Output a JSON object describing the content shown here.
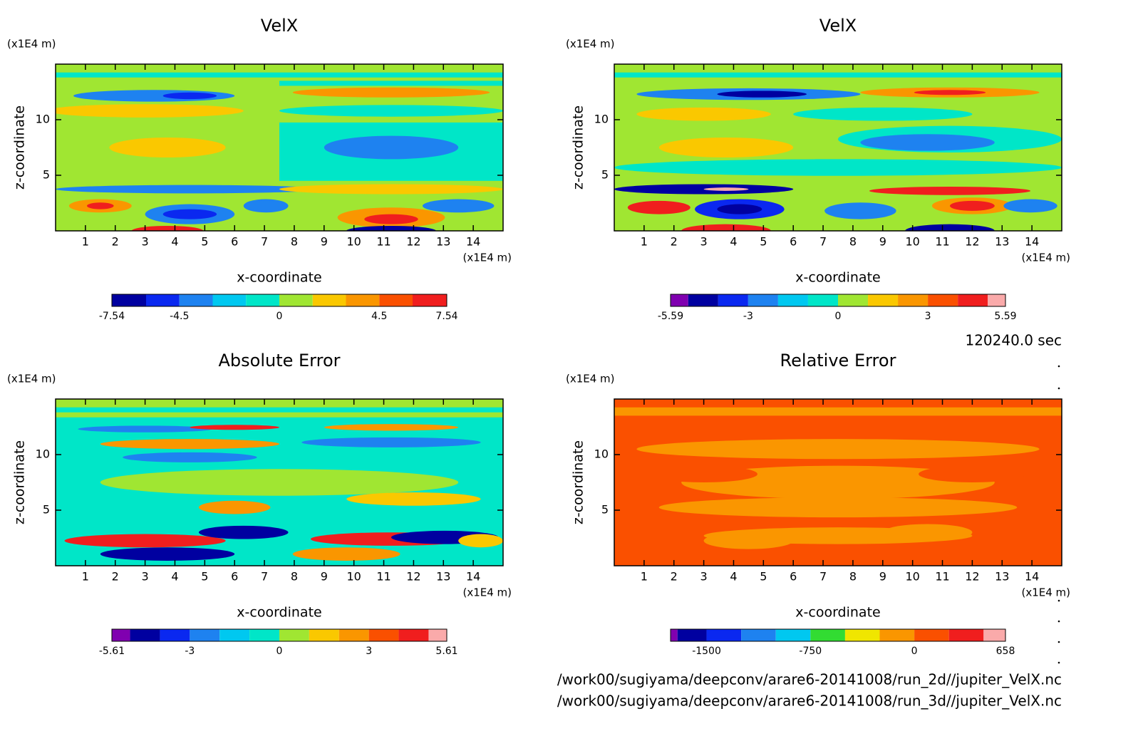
{
  "chart_data": [
    {
      "type": "contour",
      "title": "VelX",
      "xlabel": "x-coordinate",
      "ylabel": "z-coordinate",
      "x_unit": "(x1E4 m)",
      "y_unit": "(x1E4 m)",
      "xlim": [
        0,
        15
      ],
      "ylim": [
        0,
        15
      ],
      "xticks": [
        1,
        2,
        3,
        4,
        5,
        6,
        7,
        8,
        9,
        10,
        11,
        12,
        13,
        14
      ],
      "yticks": [
        5,
        10
      ],
      "colorbar_levels": [
        -7.54,
        -6,
        -4.5,
        -3,
        -1.5,
        0,
        1.5,
        3,
        4.5,
        6,
        7.54
      ],
      "colorbar_colors": [
        "#0000a0",
        "#0a28f0",
        "#1e82f0",
        "#00c8f0",
        "#00e6c8",
        "#a0e632",
        "#fac800",
        "#fa9600",
        "#fa5000",
        "#f01e1e"
      ],
      "colorbar_ticks": [
        -7.54,
        -4.5,
        0,
        4.5,
        7.54
      ]
    },
    {
      "type": "contour",
      "title": "VelX",
      "xlabel": "x-coordinate",
      "ylabel": "z-coordinate",
      "x_unit": "(x1E4 m)",
      "y_unit": "(x1E4 m)",
      "xlim": [
        0,
        15
      ],
      "ylim": [
        0,
        15
      ],
      "xticks": [
        1,
        2,
        3,
        4,
        5,
        6,
        7,
        8,
        9,
        10,
        11,
        12,
        13,
        14
      ],
      "yticks": [
        5,
        10
      ],
      "colorbar_levels": [
        -5.59,
        -5,
        -4,
        -3,
        -2,
        -1,
        0,
        1,
        2,
        3,
        4,
        5,
        5.59
      ],
      "colorbar_colors": [
        "#8000b0",
        "#0000a0",
        "#0a28f0",
        "#1e82f0",
        "#00c8f0",
        "#00e6c8",
        "#a0e632",
        "#fac800",
        "#fa9600",
        "#fa5000",
        "#f01e1e",
        "#faaaaa"
      ],
      "colorbar_ticks": [
        -5.59,
        -3,
        0,
        3,
        5.59
      ]
    },
    {
      "type": "contour",
      "title": "Absolute Error",
      "xlabel": "x-coordinate",
      "ylabel": "z-coordinate",
      "x_unit": "(x1E4 m)",
      "y_unit": "(x1E4 m)",
      "xlim": [
        0,
        15
      ],
      "ylim": [
        0,
        15
      ],
      "xticks": [
        1,
        2,
        3,
        4,
        5,
        6,
        7,
        8,
        9,
        10,
        11,
        12,
        13,
        14
      ],
      "yticks": [
        5,
        10
      ],
      "colorbar_levels": [
        -5.61,
        -5,
        -4,
        -3,
        -2,
        -1,
        0,
        1,
        2,
        3,
        4,
        5,
        5.61
      ],
      "colorbar_colors": [
        "#8000b0",
        "#0000a0",
        "#0a28f0",
        "#1e82f0",
        "#00c8f0",
        "#00e6c8",
        "#a0e632",
        "#fac800",
        "#fa9600",
        "#fa5000",
        "#f01e1e",
        "#faaaaa"
      ],
      "colorbar_ticks": [
        -5.61,
        -3,
        0,
        3,
        5.61
      ]
    },
    {
      "type": "contour",
      "title": "Relative Error",
      "xlabel": "x-coordinate",
      "ylabel": "z-coordinate",
      "x_unit": "(x1E4 m)",
      "y_unit": "(x1E4 m)",
      "xlim": [
        0,
        15
      ],
      "ylim": [
        0,
        15
      ],
      "xticks": [
        1,
        2,
        3,
        4,
        5,
        6,
        7,
        8,
        9,
        10,
        11,
        12,
        13,
        14
      ],
      "yticks": [
        5,
        10
      ],
      "colorbar_levels": [
        -1760,
        -1710,
        -1500,
        -1250,
        -1000,
        -750,
        -500,
        -250,
        0,
        250,
        500,
        658
      ],
      "colorbar_colors": [
        "#8000b0",
        "#0000a0",
        "#0a28f0",
        "#1e82f0",
        "#00c8f0",
        "#32dc32",
        "#f0e600",
        "#fa9600",
        "#fa5000",
        "#f01e1e",
        "#faaaaa"
      ],
      "colorbar_ticks": [
        -1500,
        -750,
        0,
        658
      ]
    }
  ],
  "footer": {
    "time": "120240.0 sec",
    "files": [
      "/work00/sugiyama/deepconv/arare6-20141008/run_2d//jupiter_VelX.nc",
      "/work00/sugiyama/deepconv/arare6-20141008/run_3d//jupiter_VelX.nc"
    ]
  }
}
